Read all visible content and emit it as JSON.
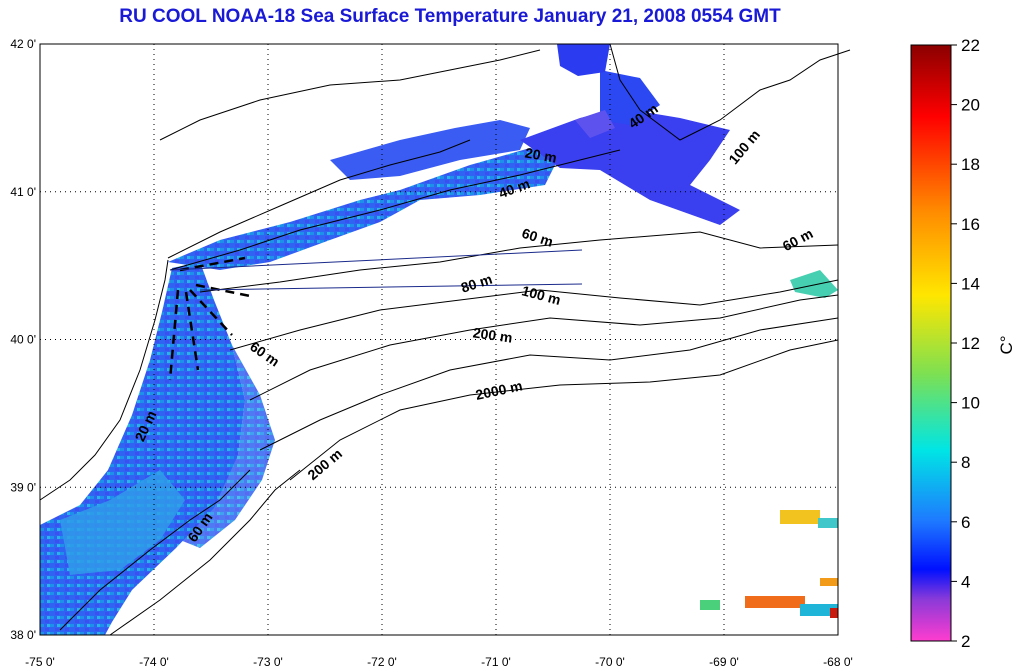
{
  "title": "RU COOL  NOAA-18 Sea Surface Temperature January 21, 2008 0554 GMT",
  "map": {
    "lon_ticks": [
      "-75 0'",
      "-74 0'",
      "-73 0'",
      "-72 0'",
      "-71 0'",
      "-70 0'",
      "-69 0'",
      "-68 0'"
    ],
    "lat_ticks": [
      "42 0'",
      "41 0'",
      "40 0'",
      "39 0'",
      "38 0'"
    ],
    "lon_range": [
      -75,
      -68
    ],
    "lat_range": [
      38,
      42
    ],
    "grid": "dotted",
    "contour_labels": [
      {
        "text": "20 m"
      },
      {
        "text": "40 m"
      },
      {
        "text": "40 m"
      },
      {
        "text": "100 m"
      },
      {
        "text": "60 m"
      },
      {
        "text": "60 m"
      },
      {
        "text": "80 m"
      },
      {
        "text": "100 m"
      },
      {
        "text": "200 m"
      },
      {
        "text": "60 m"
      },
      {
        "text": "2000 m"
      },
      {
        "text": "20 m"
      },
      {
        "text": "200 m"
      },
      {
        "text": "60 m"
      }
    ]
  },
  "colorbar": {
    "ticks": [
      "22",
      "20",
      "18",
      "16",
      "14",
      "12",
      "10",
      "8",
      "6",
      "4",
      "2"
    ],
    "unit": "C°",
    "range": [
      2,
      22
    ]
  }
}
